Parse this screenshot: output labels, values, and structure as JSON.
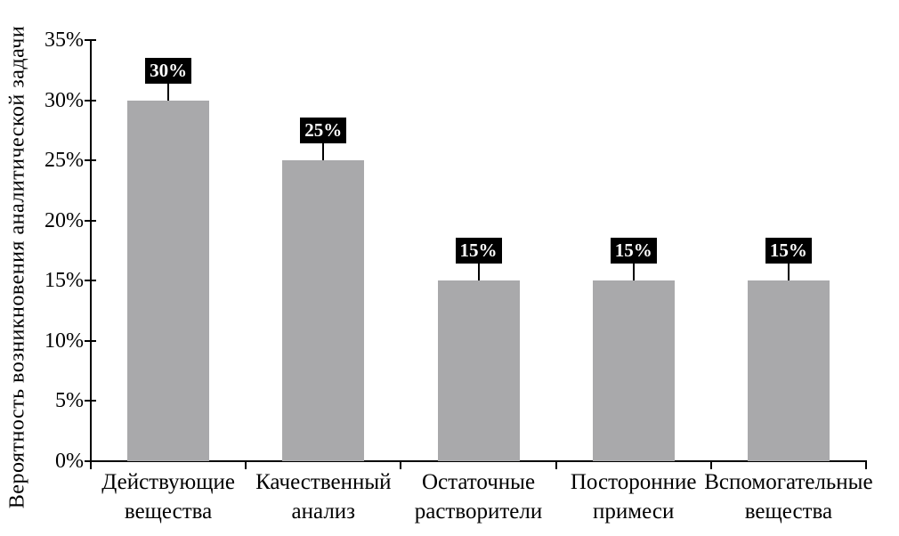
{
  "chart_data": {
    "type": "bar",
    "categories": [
      "Действующие\nвещества",
      "Качественный\nанализ",
      "Остаточные\nрастворители",
      "Посторонние\nпримеси",
      "Вспомогательные\nвещества"
    ],
    "values": [
      30,
      25,
      15,
      15,
      15
    ],
    "value_labels": [
      "30%",
      "25%",
      "15%",
      "15%",
      "15%"
    ],
    "title": "",
    "xlabel": "",
    "ylabel": "Вероятность возникновения аналитической задачи",
    "ylim": [
      0,
      35
    ],
    "yticks": [
      0,
      5,
      10,
      15,
      20,
      25,
      30,
      35
    ],
    "ytick_labels": [
      "0%",
      "5%",
      "10%",
      "15%",
      "20%",
      "25%",
      "30%",
      "35%"
    ],
    "grid": "off",
    "legend": "none",
    "bar_color": "#a9a9ab",
    "axis_color": "#000000",
    "data_label_bg": "#000000",
    "data_label_fg": "#ffffff"
  }
}
